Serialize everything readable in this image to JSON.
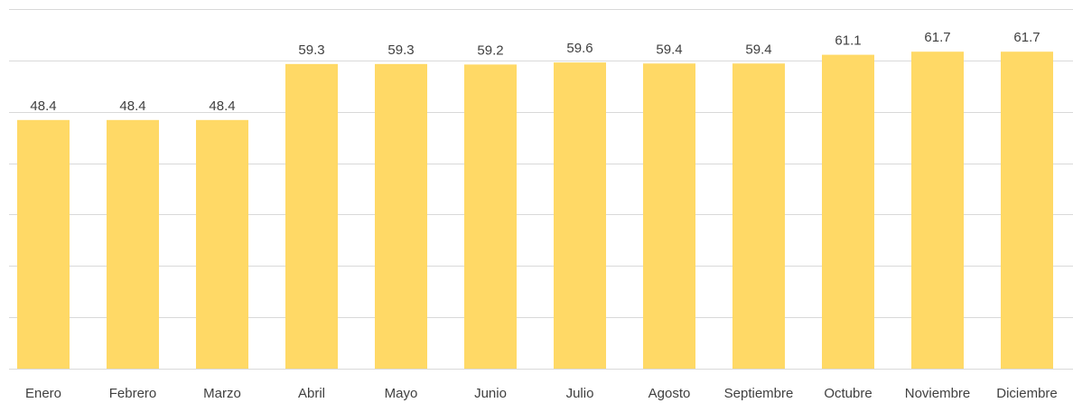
{
  "chart_data": {
    "type": "bar",
    "categories": [
      "Enero",
      "Febrero",
      "Marzo",
      "Abril",
      "Mayo",
      "Junio",
      "Julio",
      "Agosto",
      "Septiembre",
      "Octubre",
      "Noviembre",
      "Diciembre"
    ],
    "values": [
      48.4,
      48.4,
      48.4,
      59.3,
      59.3,
      59.2,
      59.6,
      59.4,
      59.4,
      61.1,
      61.7,
      61.7
    ],
    "data_labels": [
      "48.4",
      "48.4",
      "48.4",
      "59.3",
      "59.3",
      "59.2",
      "59.6",
      "59.4",
      "59.4",
      "61.1",
      "61.7",
      "61.7"
    ],
    "ylim": [
      0,
      70
    ],
    "grid": true,
    "bar_color": "#FFD966",
    "gridline_color": "#D9D9D9",
    "title": "",
    "xlabel": "",
    "ylabel": ""
  }
}
